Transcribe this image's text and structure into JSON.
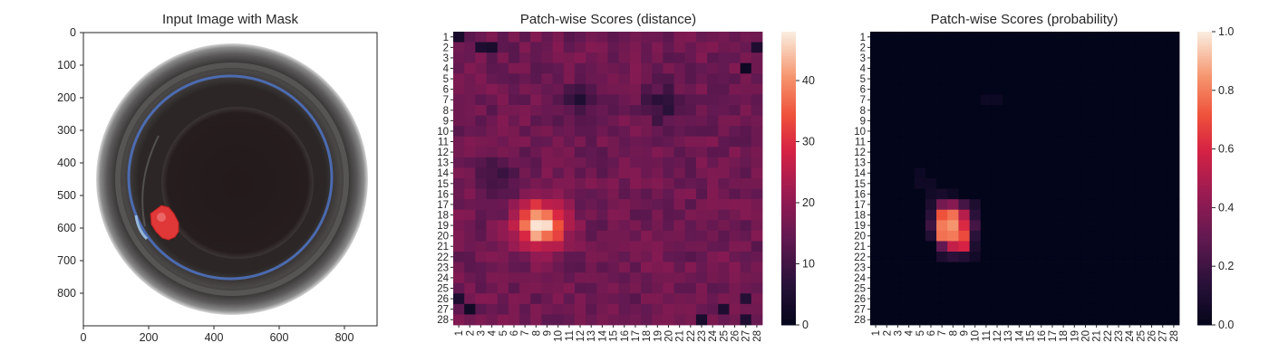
{
  "chart_data": [
    {
      "type": "image",
      "title": "Input Image with Mask",
      "xticks": [
        "0",
        "200",
        "400",
        "600",
        "800"
      ],
      "yticks": [
        "0",
        "100",
        "200",
        "300",
        "400",
        "500",
        "600",
        "700",
        "800"
      ],
      "xlim": [
        0,
        900
      ],
      "ylim": [
        0,
        900
      ],
      "image": {
        "content": "top-down photo of a circular dark cup/container with a red mask region",
        "ring_color": "#3f3f3f",
        "inner_color": "#241c1d",
        "blue_edge_color": "#4f74c4",
        "mask_color": "#e03838",
        "mask_center": [
          240,
          580
        ]
      }
    },
    {
      "type": "heatmap",
      "title": "Patch-wise Scores (distance)",
      "x_labels": [
        "1",
        "2",
        "3",
        "4",
        "5",
        "6",
        "7",
        "8",
        "9",
        "10",
        "11",
        "12",
        "13",
        "14",
        "15",
        "16",
        "17",
        "18",
        "19",
        "20",
        "21",
        "22",
        "23",
        "24",
        "25",
        "26",
        "27",
        "28"
      ],
      "y_labels": [
        "1",
        "2",
        "3",
        "4",
        "5",
        "6",
        "7",
        "8",
        "9",
        "10",
        "11",
        "12",
        "13",
        "14",
        "15",
        "16",
        "17",
        "18",
        "19",
        "20",
        "21",
        "22",
        "23",
        "24",
        "25",
        "26",
        "27",
        "28"
      ],
      "colormap": "rocket",
      "colorbar": {
        "min": 0,
        "max": 48,
        "ticks": [
          "0",
          "10",
          "20",
          "30",
          "40"
        ]
      },
      "background_value": 16,
      "hotspots": [
        {
          "row": 19.0,
          "col": 8.5,
          "peak": 47,
          "sigma": 1.5
        },
        {
          "row": 14.5,
          "col": 5.0,
          "peak": 9,
          "sigma": 1.3
        },
        {
          "row": 7.0,
          "col": 11.5,
          "peak": 6,
          "sigma": 1.0
        },
        {
          "row": 7.5,
          "col": 19.5,
          "peak": 6,
          "sigma": 1.2
        }
      ],
      "cold_spots": [
        {
          "row": 1,
          "col": 1,
          "value": 4
        },
        {
          "row": 2,
          "col": 3,
          "value": 5
        },
        {
          "row": 2,
          "col": 4,
          "value": 4
        },
        {
          "row": 4,
          "col": 27,
          "value": 2
        },
        {
          "row": 2,
          "col": 28,
          "value": 5
        },
        {
          "row": 27,
          "col": 2,
          "value": 3
        },
        {
          "row": 28,
          "col": 23,
          "value": 4
        },
        {
          "row": 27,
          "col": 25,
          "value": 5
        },
        {
          "row": 26,
          "col": 1,
          "value": 5
        },
        {
          "row": 26,
          "col": 27,
          "value": 6
        },
        {
          "row": 28,
          "col": 27,
          "value": 5
        }
      ]
    },
    {
      "type": "heatmap",
      "title": "Patch-wise Scores (probability)",
      "x_labels": [
        "1",
        "2",
        "3",
        "4",
        "5",
        "6",
        "7",
        "8",
        "9",
        "10",
        "11",
        "12",
        "13",
        "14",
        "15",
        "16",
        "17",
        "18",
        "19",
        "20",
        "21",
        "22",
        "23",
        "24",
        "25",
        "26",
        "27",
        "28"
      ],
      "y_labels": [
        "1",
        "2",
        "3",
        "4",
        "5",
        "6",
        "7",
        "8",
        "9",
        "10",
        "11",
        "12",
        "13",
        "14",
        "15",
        "16",
        "17",
        "18",
        "19",
        "20",
        "21",
        "22",
        "23",
        "24",
        "25",
        "26",
        "27",
        "28"
      ],
      "colormap": "rocket",
      "colorbar": {
        "min": 0.0,
        "max": 1.0,
        "ticks": [
          "0.0",
          "0.2",
          "0.4",
          "0.6",
          "0.8",
          "1.0"
        ]
      },
      "background_value": 0.0,
      "cells": [
        {
          "row": 14,
          "col": 5,
          "value": 0.04
        },
        {
          "row": 15,
          "col": 5,
          "value": 0.05
        },
        {
          "row": 15,
          "col": 6,
          "value": 0.05
        },
        {
          "row": 16,
          "col": 6,
          "value": 0.06
        },
        {
          "row": 16,
          "col": 7,
          "value": 0.08
        },
        {
          "row": 16,
          "col": 8,
          "value": 0.05
        },
        {
          "row": 17,
          "col": 6,
          "value": 0.1
        },
        {
          "row": 17,
          "col": 7,
          "value": 0.35
        },
        {
          "row": 17,
          "col": 8,
          "value": 0.4
        },
        {
          "row": 17,
          "col": 9,
          "value": 0.22
        },
        {
          "row": 17,
          "col": 10,
          "value": 0.1
        },
        {
          "row": 18,
          "col": 6,
          "value": 0.15
        },
        {
          "row": 18,
          "col": 7,
          "value": 0.72
        },
        {
          "row": 18,
          "col": 8,
          "value": 0.78
        },
        {
          "row": 18,
          "col": 9,
          "value": 0.52
        },
        {
          "row": 18,
          "col": 10,
          "value": 0.15
        },
        {
          "row": 19,
          "col": 6,
          "value": 0.2
        },
        {
          "row": 19,
          "col": 7,
          "value": 0.8
        },
        {
          "row": 19,
          "col": 8,
          "value": 0.85
        },
        {
          "row": 19,
          "col": 9,
          "value": 0.62
        },
        {
          "row": 19,
          "col": 10,
          "value": 0.22
        },
        {
          "row": 20,
          "col": 6,
          "value": 0.12
        },
        {
          "row": 20,
          "col": 7,
          "value": 0.78
        },
        {
          "row": 20,
          "col": 8,
          "value": 0.8
        },
        {
          "row": 20,
          "col": 9,
          "value": 0.7
        },
        {
          "row": 20,
          "col": 10,
          "value": 0.15
        },
        {
          "row": 21,
          "col": 7,
          "value": 0.3
        },
        {
          "row": 21,
          "col": 8,
          "value": 0.55
        },
        {
          "row": 21,
          "col": 9,
          "value": 0.6
        },
        {
          "row": 21,
          "col": 10,
          "value": 0.1
        },
        {
          "row": 22,
          "col": 7,
          "value": 0.1
        },
        {
          "row": 22,
          "col": 8,
          "value": 0.15
        },
        {
          "row": 22,
          "col": 9,
          "value": 0.12
        },
        {
          "row": 22,
          "col": 10,
          "value": 0.06
        },
        {
          "row": 7,
          "col": 11,
          "value": 0.04
        },
        {
          "row": 7,
          "col": 12,
          "value": 0.04
        }
      ]
    }
  ]
}
